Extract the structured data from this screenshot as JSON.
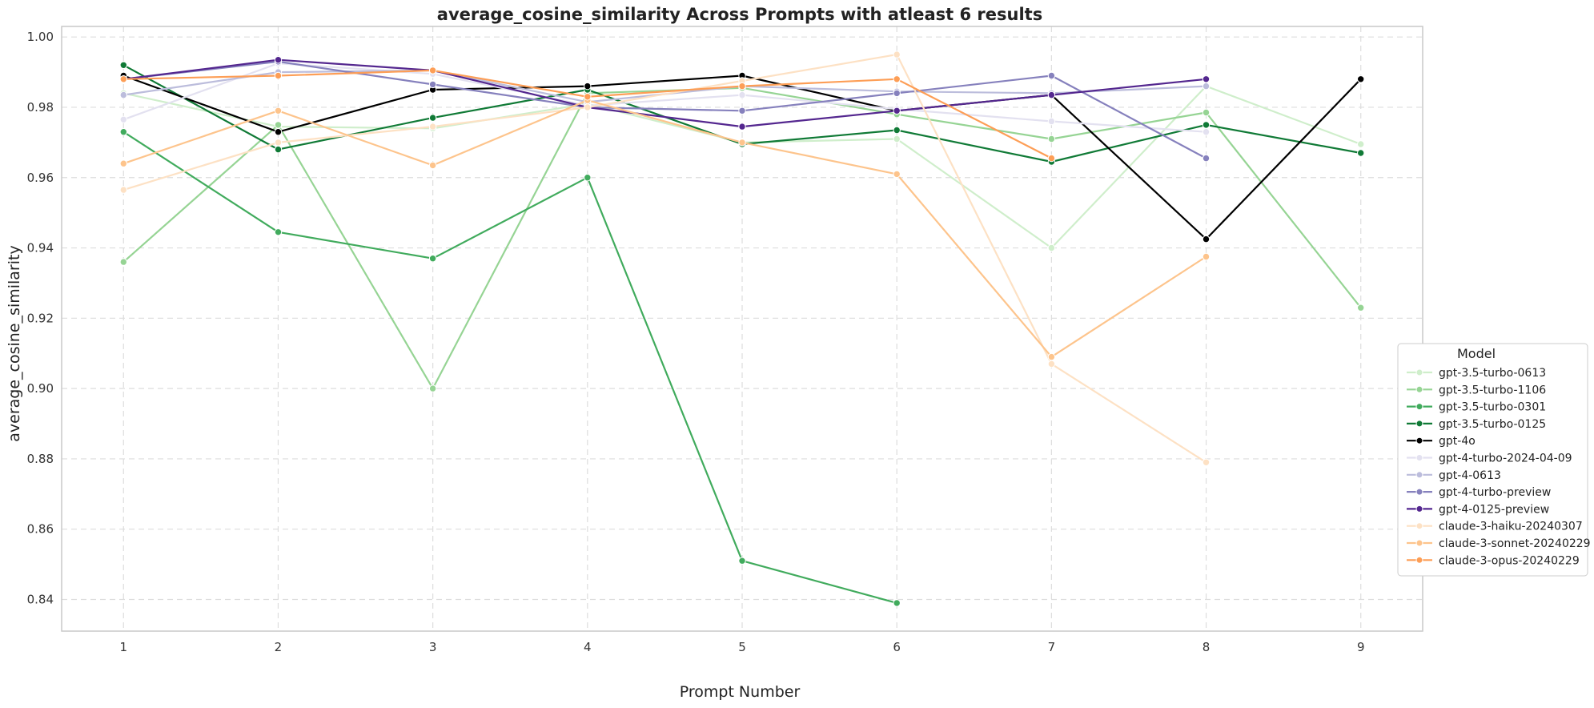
{
  "chart_data": {
    "type": "line",
    "title": "average_cosine_similarity Across Prompts with atleast 6 results",
    "xlabel": "Prompt Number",
    "ylabel": "average_cosine_similarity",
    "x": [
      1,
      2,
      3,
      4,
      5,
      6,
      7,
      8,
      9
    ],
    "xlim": [
      0.6,
      9.4
    ],
    "ylim": [
      0.831,
      1.003
    ],
    "xticks": [
      "1",
      "2",
      "3",
      "4",
      "5",
      "6",
      "7",
      "8",
      "9"
    ],
    "yticks": [
      "0.84",
      "0.86",
      "0.88",
      "0.90",
      "0.92",
      "0.94",
      "0.96",
      "0.98",
      "1.00"
    ],
    "grid": true,
    "legend": {
      "title": "Model",
      "placement": "right"
    },
    "series": [
      {
        "name": "gpt-3.5-turbo-0613",
        "color": "#cfeecb",
        "points": [
          [
            1,
            0.984
          ],
          [
            2,
            0.9745
          ],
          [
            3,
            0.974
          ],
          [
            4,
            0.981
          ],
          [
            5,
            0.97
          ],
          [
            6,
            0.971
          ],
          [
            7,
            0.94
          ],
          [
            8,
            0.986
          ],
          [
            9,
            0.9695
          ]
        ]
      },
      {
        "name": "gpt-3.5-turbo-1106",
        "color": "#96d494",
        "points": [
          [
            1,
            0.936
          ],
          [
            2,
            0.975
          ],
          [
            3,
            0.9
          ],
          [
            4,
            0.984
          ],
          [
            5,
            0.9855
          ],
          [
            6,
            0.978
          ],
          [
            7,
            0.971
          ],
          [
            8,
            0.9785
          ],
          [
            9,
            0.923
          ]
        ]
      },
      {
        "name": "gpt-3.5-turbo-0301",
        "color": "#41ab5d",
        "points": [
          [
            1,
            0.973
          ],
          [
            2,
            0.9445
          ],
          [
            3,
            0.937
          ],
          [
            4,
            0.96
          ],
          [
            5,
            0.851
          ],
          [
            6,
            0.839
          ]
        ]
      },
      {
        "name": "gpt-3.5-turbo-0125",
        "color": "#107a36",
        "points": [
          [
            1,
            0.992
          ],
          [
            2,
            0.968
          ],
          [
            3,
            0.977
          ],
          [
            4,
            0.985
          ],
          [
            5,
            0.9695
          ],
          [
            6,
            0.9735
          ],
          [
            7,
            0.9645
          ],
          [
            8,
            0.975
          ],
          [
            9,
            0.967
          ]
        ]
      },
      {
        "name": "gpt-4o",
        "color": "#000000",
        "points": [
          [
            1,
            0.989
          ],
          [
            2,
            0.973
          ],
          [
            3,
            0.985
          ],
          [
            4,
            0.986
          ],
          [
            5,
            0.989
          ],
          [
            6,
            0.979
          ],
          [
            7,
            0.9835
          ],
          [
            8,
            0.9425
          ],
          [
            9,
            0.988
          ]
        ]
      },
      {
        "name": "gpt-4-turbo-2024-04-09",
        "color": "#e3e1f0",
        "points": [
          [
            1,
            0.9765
          ],
          [
            2,
            0.9925
          ],
          [
            3,
            0.9895
          ],
          [
            4,
            0.9805
          ],
          [
            5,
            0.9835
          ],
          [
            6,
            0.9795
          ],
          [
            7,
            0.976
          ],
          [
            8,
            0.973
          ]
        ]
      },
      {
        "name": "gpt-4-0613",
        "color": "#bcbddc",
        "points": [
          [
            1,
            0.9835
          ],
          [
            2,
            0.99
          ],
          [
            3,
            0.9905
          ],
          [
            4,
            0.9815
          ],
          [
            5,
            0.986
          ],
          [
            6,
            0.9845
          ],
          [
            7,
            0.984
          ],
          [
            8,
            0.986
          ]
        ]
      },
      {
        "name": "gpt-4-turbo-preview",
        "color": "#8681bd",
        "points": [
          [
            1,
            0.988
          ],
          [
            2,
            0.993
          ],
          [
            3,
            0.9865
          ],
          [
            4,
            0.98
          ],
          [
            5,
            0.979
          ],
          [
            6,
            0.984
          ],
          [
            7,
            0.989
          ],
          [
            8,
            0.9655
          ]
        ]
      },
      {
        "name": "gpt-4-0125-preview",
        "color": "#54278f",
        "points": [
          [
            1,
            0.988
          ],
          [
            2,
            0.9935
          ],
          [
            3,
            0.9905
          ],
          [
            4,
            0.98
          ],
          [
            5,
            0.9745
          ],
          [
            6,
            0.979
          ],
          [
            7,
            0.9835
          ],
          [
            8,
            0.988
          ]
        ]
      },
      {
        "name": "claude-3-haiku-20240307",
        "color": "#fde1c4",
        "points": [
          [
            1,
            0.9565
          ],
          [
            2,
            0.97
          ],
          [
            3,
            0.9745
          ],
          [
            4,
            0.98
          ],
          [
            5,
            0.9875
          ],
          [
            6,
            0.995
          ],
          [
            7,
            0.907
          ],
          [
            8,
            0.879
          ]
        ]
      },
      {
        "name": "claude-3-sonnet-20240229",
        "color": "#fdc48c",
        "points": [
          [
            1,
            0.964
          ],
          [
            2,
            0.979
          ],
          [
            3,
            0.9635
          ],
          [
            4,
            0.982
          ],
          [
            5,
            0.97
          ],
          [
            6,
            0.961
          ],
          [
            7,
            0.909
          ],
          [
            8,
            0.9375
          ]
        ]
      },
      {
        "name": "claude-3-opus-20240229",
        "color": "#fd9e56",
        "points": [
          [
            1,
            0.988
          ],
          [
            2,
            0.989
          ],
          [
            3,
            0.9905
          ],
          [
            4,
            0.983
          ],
          [
            5,
            0.986
          ],
          [
            6,
            0.988
          ],
          [
            7,
            0.9655
          ]
        ]
      }
    ]
  }
}
